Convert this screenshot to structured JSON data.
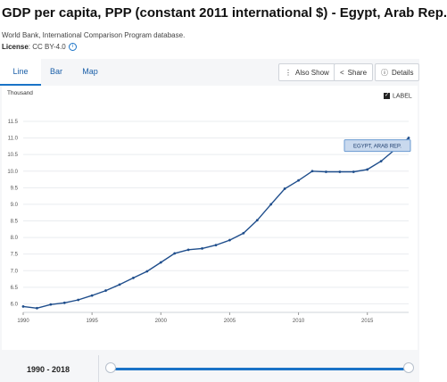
{
  "header": {
    "title": "GDP per capita, PPP (constant 2011 international $) - Egypt, Arab Rep.",
    "source": "World Bank, International Comparison Program database.",
    "license_label": "License",
    "license_value": ": CC BY-4.0"
  },
  "tabs": [
    {
      "label": "Line",
      "active": true
    },
    {
      "label": "Bar",
      "active": false
    },
    {
      "label": "Map",
      "active": false
    }
  ],
  "toolbar": {
    "also_show": "Also Show",
    "share": "Share",
    "details": "Details",
    "label_toggle": "LABEL"
  },
  "range": {
    "label": "1990 - 2018",
    "start": 1990,
    "end": 2018
  },
  "colors": {
    "accent": "#1a73c7",
    "line": "#1f4e8c",
    "callout_fill": "#c9d9ee",
    "callout_border": "#6b9bd1"
  },
  "chart_data": {
    "type": "line",
    "unit_label": "Thousand",
    "series": [
      {
        "name": "EGYPT, ARAB REP.",
        "x": [
          1990,
          1991,
          1992,
          1993,
          1994,
          1995,
          1996,
          1997,
          1998,
          1999,
          2000,
          2001,
          2002,
          2003,
          2004,
          2005,
          2006,
          2007,
          2008,
          2009,
          2010,
          2011,
          2012,
          2013,
          2014,
          2015,
          2016,
          2017,
          2018
        ],
        "y": [
          5.92,
          5.87,
          5.98,
          6.03,
          6.12,
          6.25,
          6.4,
          6.58,
          6.78,
          6.98,
          7.25,
          7.52,
          7.63,
          7.67,
          7.77,
          7.92,
          8.13,
          8.52,
          9.0,
          9.47,
          9.72,
          10.0,
          9.98,
          9.98,
          9.98,
          10.05,
          10.3,
          10.65,
          11.0
        ]
      }
    ],
    "x_ticks": [
      "1990",
      "1995",
      "2000",
      "2005",
      "2010",
      "2015"
    ],
    "y_ticks": [
      "6.0",
      "6.5",
      "7.0",
      "7.5",
      "8.0",
      "8.5",
      "9.0",
      "9.5",
      "10.0",
      "10.5",
      "11.0",
      "11.5"
    ],
    "xlim": [
      1990,
      2018
    ],
    "ylim": [
      5.85,
      11.5
    ],
    "grid": true,
    "annotation": "EGYPT, ARAB REP."
  }
}
